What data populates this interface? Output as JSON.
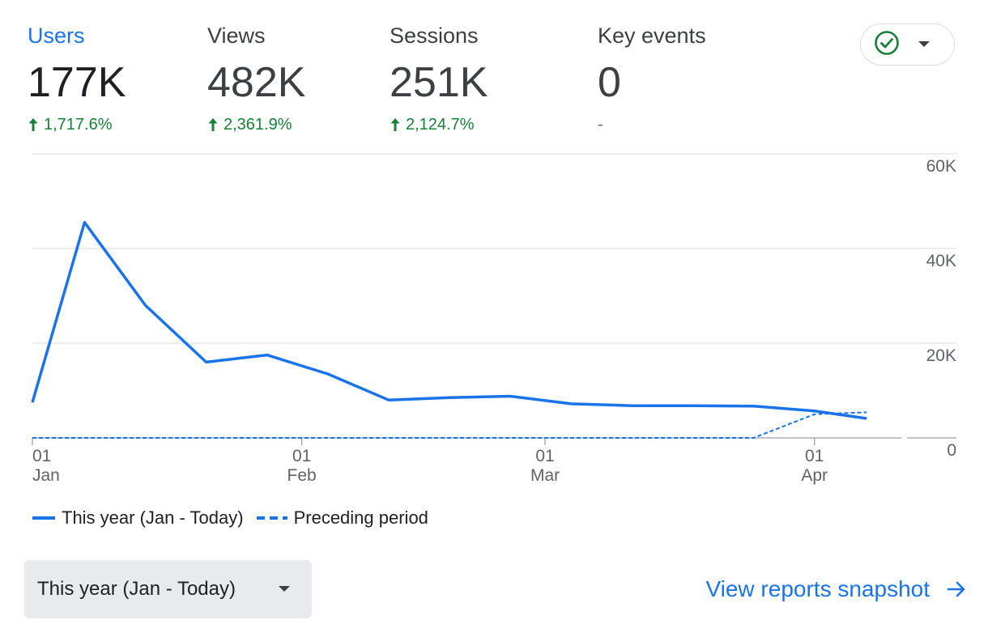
{
  "metrics": [
    {
      "label": "Users",
      "value": "177K",
      "change": "1,717.6%",
      "direction": "up",
      "active": true
    },
    {
      "label": "Views",
      "value": "482K",
      "change": "2,361.9%",
      "direction": "up",
      "active": false
    },
    {
      "label": "Sessions",
      "value": "251K",
      "change": "2,124.7%",
      "direction": "up",
      "active": false
    },
    {
      "label": "Key events",
      "value": "0",
      "change": "-",
      "direction": "none",
      "active": false
    }
  ],
  "check_select": {
    "icon": "check-circle-icon",
    "caret": "arrow-drop-down-icon"
  },
  "chart_data": {
    "type": "line",
    "y_ticks": [
      "60K",
      "40K",
      "20K",
      "0"
    ],
    "ylim": [
      0,
      60000
    ],
    "x_ticks": [
      {
        "day": "01",
        "month": "Jan"
      },
      {
        "day": "01",
        "month": "Feb"
      },
      {
        "day": "01",
        "month": "Mar"
      },
      {
        "day": "01",
        "month": "Apr"
      }
    ],
    "x_dates": [
      "2025-01-01",
      "2025-01-07",
      "2025-01-14",
      "2025-01-21",
      "2025-01-28",
      "2025-02-04",
      "2025-02-11",
      "2025-02-18",
      "2025-02-25",
      "2025-03-04",
      "2025-03-11",
      "2025-03-18",
      "2025-03-25",
      "2025-04-01",
      "2025-04-07"
    ],
    "series": [
      {
        "name": "This year (Jan - Today)",
        "style": "solid",
        "color": "#1a73e8",
        "values": [
          7500,
          45500,
          28000,
          16000,
          17500,
          13500,
          8000,
          8500,
          8800,
          7200,
          6800,
          6800,
          6700,
          5700,
          4100
        ]
      },
      {
        "name": "Preceding period",
        "style": "dashed",
        "color": "#1a73e8",
        "values": [
          0,
          0,
          0,
          0,
          0,
          0,
          0,
          0,
          0,
          0,
          0,
          0,
          0,
          5000,
          5400
        ]
      }
    ],
    "grid": true,
    "legend_position": "bottom-left"
  },
  "legend": {
    "current": "This year (Jan - Today)",
    "previous": "Preceding period"
  },
  "period_select": {
    "label": "This year (Jan - Today)",
    "caret": "arrow-drop-down-icon"
  },
  "snapshot_link": {
    "label": "View reports snapshot",
    "icon": "arrow-forward-icon"
  }
}
